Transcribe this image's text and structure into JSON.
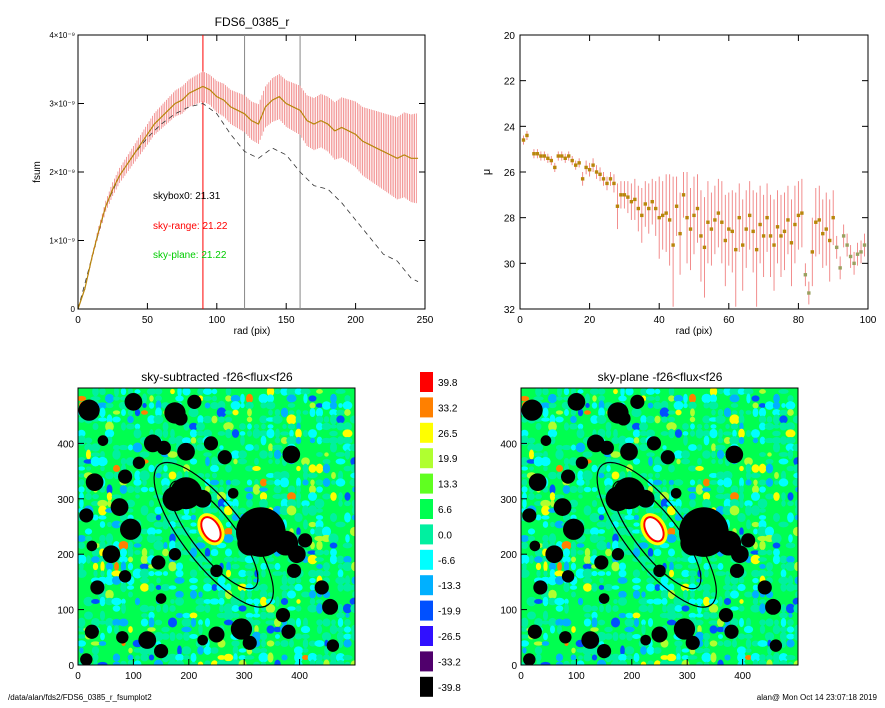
{
  "footer": {
    "left": "/data/alan/fds2/FDS6_0385_r_fsumplot2",
    "right": "alan@  Mon Oct 14 23:07:18 2019"
  },
  "colors": {
    "profile": "#b8860b",
    "error_bar": "#f08080",
    "sky_range": "#ff0000",
    "sky_plane": "#00cc00",
    "ellipse": "#000000",
    "mask": "#000000"
  },
  "chart_data": [
    {
      "type": "line",
      "title": "FDS6_0385_r",
      "xlabel": "rad (pix)",
      "ylabel": "fsum",
      "xlim": [
        0,
        250
      ],
      "ylim": [
        0,
        4e-09
      ],
      "x_ticks": [
        "0",
        "50",
        "100",
        "150",
        "200",
        "250"
      ],
      "y_ticks": [
        "0",
        "1×10⁻⁹",
        "2×10⁻⁹",
        "3×10⁻⁹",
        "4×10⁻⁹"
      ],
      "vlines": [
        {
          "x": 90,
          "color": "#ff0000"
        },
        {
          "x": 120,
          "color": "#888888"
        },
        {
          "x": 160,
          "color": "#888888"
        }
      ],
      "annotations": [
        {
          "text": "skybox0: 21.31",
          "color": "#000000"
        },
        {
          "text": "sky-range: 21.22",
          "color": "#ff0000"
        },
        {
          "text": "sky-plane: 21.22",
          "color": "#00cc00"
        }
      ],
      "series_profile": {
        "x": [
          0,
          5,
          10,
          15,
          20,
          25,
          30,
          35,
          40,
          45,
          50,
          55,
          60,
          65,
          70,
          75,
          80,
          85,
          90,
          95,
          100,
          105,
          110,
          115,
          120,
          125,
          130,
          135,
          140,
          145,
          150,
          155,
          160,
          165,
          170,
          175,
          180,
          185,
          190,
          195,
          200,
          205,
          210,
          215,
          220,
          225,
          230,
          235,
          240,
          245
        ],
        "y": [
          0,
          3e-10,
          7.5e-10,
          1.15e-09,
          1.5e-09,
          1.75e-09,
          1.95e-09,
          2.1e-09,
          2.25e-09,
          2.4e-09,
          2.55e-09,
          2.7e-09,
          2.8e-09,
          2.9e-09,
          3e-09,
          3.05e-09,
          3.15e-09,
          3.2e-09,
          3.25e-09,
          3.2e-09,
          3.1e-09,
          3.05e-09,
          2.95e-09,
          2.9e-09,
          2.85e-09,
          2.75e-09,
          2.7e-09,
          2.95e-09,
          3.05e-09,
          3.1e-09,
          3e-09,
          2.95e-09,
          2.9e-09,
          2.75e-09,
          2.7e-09,
          2.75e-09,
          2.7e-09,
          2.6e-09,
          2.65e-09,
          2.6e-09,
          2.55e-09,
          2.45e-09,
          2.4e-09,
          2.35e-09,
          2.3e-09,
          2.25e-09,
          2.2e-09,
          2.25e-09,
          2.2e-09,
          2.2e-09
        ],
        "err": [
          0,
          2e-11,
          4e-11,
          6e-11,
          8e-11,
          1e-10,
          1.1e-10,
          1.2e-10,
          1.3e-10,
          1.4e-10,
          1.5e-10,
          1.6e-10,
          1.7e-10,
          1.8e-10,
          1.9e-10,
          2e-10,
          2e-10,
          2.1e-10,
          2.2e-10,
          2.2e-10,
          2.3e-10,
          2.4e-10,
          2.5e-10,
          2.6e-10,
          2.7e-10,
          2.8e-10,
          2.9e-10,
          3e-10,
          3.2e-10,
          3.3e-10,
          3.4e-10,
          3.5e-10,
          3.6e-10,
          3.7e-10,
          3.8e-10,
          3.9e-10,
          4e-10,
          4.2e-10,
          4.4e-10,
          4.6e-10,
          4.8e-10,
          5e-10,
          5.2e-10,
          5.4e-10,
          5.6e-10,
          5.8e-10,
          6e-10,
          6.2e-10,
          6.4e-10,
          6.6e-10
        ]
      },
      "series_dashed": {
        "x": [
          0,
          10,
          20,
          30,
          40,
          50,
          60,
          70,
          80,
          90,
          100,
          110,
          120,
          130,
          140,
          150,
          160,
          170,
          180,
          190,
          200,
          210,
          220,
          230,
          240,
          245
        ],
        "y": [
          0,
          7.5e-10,
          1.5e-09,
          1.95e-09,
          2.25e-09,
          2.5e-09,
          2.7e-09,
          2.85e-09,
          2.95e-09,
          3e-09,
          2.85e-09,
          2.55e-09,
          2.3e-09,
          2.2e-09,
          2.35e-09,
          2.25e-09,
          2e-09,
          1.8e-09,
          1.75e-09,
          1.55e-09,
          1.3e-09,
          1.05e-09,
          8e-10,
          7e-10,
          4.5e-10,
          4e-10
        ]
      }
    },
    {
      "type": "scatter",
      "xlabel": "rad (pix)",
      "ylabel": "μ",
      "xlim": [
        0,
        100
      ],
      "ylim": [
        32,
        20
      ],
      "x_ticks": [
        "0",
        "20",
        "40",
        "60",
        "80",
        "100"
      ],
      "y_ticks": [
        "20",
        "22",
        "24",
        "26",
        "28",
        "30",
        "32"
      ],
      "points": {
        "x": [
          1,
          2,
          4,
          5,
          6,
          7,
          8,
          9,
          10,
          11,
          12,
          13,
          14,
          15,
          16,
          17,
          18,
          19,
          20,
          21,
          22,
          23,
          24,
          25,
          26,
          27,
          28,
          29,
          30,
          31,
          32,
          33,
          34,
          35,
          36,
          37,
          38,
          39,
          40,
          41,
          42,
          43,
          44,
          45,
          46,
          47,
          48,
          49,
          50,
          51,
          52,
          53,
          54,
          55,
          56,
          57,
          58,
          59,
          60,
          61,
          62,
          63,
          64,
          65,
          66,
          67,
          68,
          69,
          70,
          71,
          72,
          73,
          74,
          75,
          76,
          77,
          78,
          79,
          80,
          81,
          82,
          83,
          84,
          85,
          86,
          87,
          88,
          89,
          90,
          91,
          92,
          93,
          94,
          95,
          96,
          97,
          98,
          99
        ],
        "y": [
          24.6,
          24.4,
          25.2,
          25.2,
          25.3,
          25.3,
          25.4,
          25.5,
          25.8,
          25.3,
          25.3,
          25.4,
          25.3,
          25.5,
          25.7,
          25.6,
          26.3,
          25.8,
          25.9,
          25.7,
          26.0,
          26.1,
          26.3,
          26.5,
          26.3,
          26.5,
          27.5,
          27.0,
          27.0,
          27.1,
          27.3,
          27.2,
          27.6,
          27.9,
          27.4,
          27.6,
          27.3,
          27.6,
          28.0,
          27.9,
          27.8,
          28.1,
          29.2,
          27.5,
          28.7,
          27.0,
          28.0,
          28.5,
          27.9,
          27.6,
          28.8,
          29.3,
          28.2,
          28.5,
          28.1,
          27.8,
          28.2,
          29.0,
          28.5,
          28.6,
          29.4,
          28.0,
          29.2,
          28.5,
          27.9,
          28.6,
          29.4,
          28.3,
          28.8,
          28.0,
          28.8,
          29.2,
          28.4,
          28.8,
          28.6,
          28.1,
          29.1,
          28.3,
          27.9,
          27.8,
          30.5,
          31.3,
          29.5,
          28.2,
          28.1,
          28.7,
          28.5,
          29.0,
          28.0,
          29.3,
          30.2,
          28.8,
          29.2,
          29.7,
          30.0,
          29.6,
          29.5,
          29.2
        ],
        "err": [
          0.2,
          0.2,
          0.2,
          0.2,
          0.2,
          0.2,
          0.2,
          0.2,
          0.2,
          0.2,
          0.2,
          0.2,
          0.2,
          0.2,
          0.2,
          0.2,
          0.3,
          0.3,
          0.3,
          0.3,
          0.3,
          0.3,
          0.3,
          0.3,
          0.3,
          0.4,
          1.0,
          0.6,
          0.6,
          0.7,
          0.8,
          0.9,
          1.0,
          1.2,
          1.0,
          1.1,
          1.0,
          1.2,
          1.8,
          1.5,
          1.7,
          2.0,
          3.0,
          1.3,
          1.8,
          1.0,
          2.0,
          1.8,
          1.7,
          1.5,
          2.0,
          2.2,
          1.8,
          1.6,
          1.5,
          1.5,
          1.8,
          2.0,
          1.6,
          1.8,
          2.5,
          1.5,
          2.0,
          1.7,
          1.5,
          1.8,
          2.5,
          1.7,
          1.8,
          1.5,
          1.8,
          2.0,
          1.6,
          1.8,
          1.7,
          1.5,
          1.9,
          1.7,
          1.5,
          1.5,
          0.5,
          0.5,
          1.5,
          1.5,
          1.5,
          1.5,
          1.6,
          1.8,
          1.2,
          0.5,
          0.5,
          0.5,
          0.5,
          0.5,
          0.5,
          0.5,
          0.5,
          0.5
        ]
      }
    },
    {
      "type": "heatmap",
      "title": "sky-subtracted -f26<flux<f26",
      "xlim": [
        0,
        500
      ],
      "ylim": [
        0,
        500
      ],
      "x_ticks": [
        "0",
        "100",
        "200",
        "300",
        "400"
      ],
      "y_ticks": [
        "0",
        "100",
        "200",
        "300",
        "400"
      ]
    },
    {
      "type": "heatmap",
      "title": "sky-plane -f26<flux<f26",
      "xlim": [
        0,
        500
      ],
      "ylim": [
        0,
        500
      ],
      "x_ticks": [
        "0",
        "100",
        "200",
        "300",
        "400"
      ],
      "y_ticks": [
        "0",
        "100",
        "200",
        "300",
        "400"
      ]
    }
  ],
  "colorbar": {
    "levels": [
      "39.8",
      "33.2",
      "26.5",
      "19.9",
      "13.3",
      "6.6",
      "0.0",
      "-6.6",
      "-13.3",
      "-19.9",
      "-26.5",
      "-33.2",
      "-39.8"
    ],
    "colors": [
      "#ff0000",
      "#ff8000",
      "#ffff00",
      "#b0ff30",
      "#60ff20",
      "#00ff50",
      "#00f0a0",
      "#00ffff",
      "#00b0ff",
      "#0050ff",
      "#3010ff",
      "#50006c",
      "#000000"
    ]
  },
  "masks": {
    "blobs": [
      [
        20,
        460,
        12
      ],
      [
        100,
        475,
        10
      ],
      [
        175,
        455,
        12
      ],
      [
        185,
        445,
        8
      ],
      [
        210,
        475,
        8
      ],
      [
        135,
        400,
        10
      ],
      [
        155,
        392,
        8
      ],
      [
        195,
        385,
        10
      ],
      [
        240,
        400,
        8
      ],
      [
        265,
        375,
        8
      ],
      [
        385,
        380,
        10
      ],
      [
        30,
        330,
        10
      ],
      [
        85,
        340,
        8
      ],
      [
        110,
        365,
        7
      ],
      [
        45,
        405,
        6
      ],
      [
        195,
        310,
        18
      ],
      [
        175,
        300,
        14
      ],
      [
        225,
        300,
        10
      ],
      [
        75,
        285,
        10
      ],
      [
        15,
        270,
        8
      ],
      [
        95,
        245,
        12
      ],
      [
        330,
        240,
        28
      ],
      [
        310,
        220,
        14
      ],
      [
        375,
        220,
        14
      ],
      [
        395,
        200,
        10
      ],
      [
        60,
        200,
        10
      ],
      [
        25,
        215,
        6
      ],
      [
        145,
        185,
        8
      ],
      [
        175,
        200,
        7
      ],
      [
        250,
        170,
        7
      ],
      [
        35,
        140,
        8
      ],
      [
        85,
        160,
        7
      ],
      [
        390,
        170,
        8
      ],
      [
        440,
        140,
        8
      ],
      [
        455,
        105,
        9
      ],
      [
        370,
        90,
        8
      ],
      [
        380,
        60,
        8
      ],
      [
        25,
        60,
        8
      ],
      [
        80,
        50,
        7
      ],
      [
        125,
        45,
        10
      ],
      [
        150,
        25,
        8
      ],
      [
        225,
        45,
        6
      ],
      [
        250,
        55,
        9
      ],
      [
        295,
        65,
        12
      ],
      [
        310,
        40,
        8
      ],
      [
        460,
        35,
        7
      ],
      [
        15,
        10,
        7
      ],
      [
        410,
        225,
        8
      ],
      [
        280,
        310,
        6
      ],
      [
        150,
        120,
        6
      ]
    ],
    "ellipses": [
      {
        "cx": 245,
        "cy": 235,
        "rx": 55,
        "ry": 160,
        "rot": -38
      },
      {
        "cx": 245,
        "cy": 235,
        "rx": 38,
        "ry": 120,
        "rot": -38
      }
    ],
    "core": {
      "cx": 240,
      "cy": 245,
      "rx": 13,
      "ry": 22
    }
  }
}
